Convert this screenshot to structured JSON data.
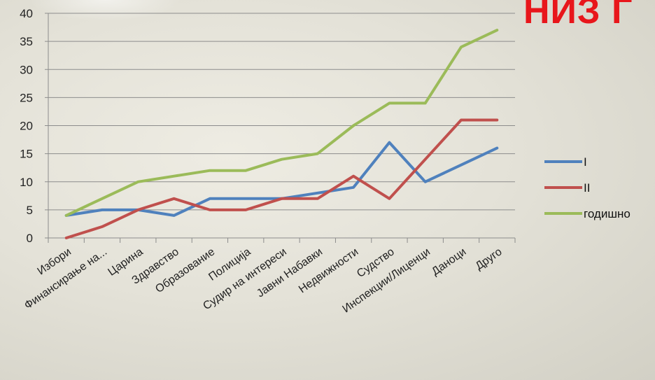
{
  "page": {
    "title_fragment": "НИЗ Г"
  },
  "chart_data": {
    "type": "line",
    "title": "",
    "xlabel": "",
    "ylabel": "",
    "categories": [
      "Избори",
      "Финансирање на...",
      "Царина",
      "Здравство",
      "Образование",
      "Полиција",
      "Судир на интереси",
      "Јавни Набавки",
      "Недвижности",
      "Судство",
      "Инспекции/Лиценци",
      "Даноци",
      "Друго"
    ],
    "series": [
      {
        "name": "I",
        "color": "#4f81bd",
        "values": [
          4,
          5,
          5,
          4,
          7,
          7,
          7,
          8,
          9,
          17,
          10,
          13,
          16
        ]
      },
      {
        "name": "II",
        "color": "#c0504d",
        "values": [
          0,
          2,
          5,
          7,
          5,
          5,
          7,
          7,
          11,
          7,
          14,
          21,
          21
        ]
      },
      {
        "name": "годишно",
        "color": "#9bbb59",
        "values": [
          4,
          7,
          10,
          11,
          12,
          12,
          14,
          15,
          20,
          24,
          24,
          34,
          37
        ]
      }
    ],
    "ylim": [
      0,
      40
    ],
    "yticks": [
      0,
      5,
      10,
      15,
      20,
      25,
      30,
      35,
      40
    ],
    "grid": true,
    "legend_position": "right"
  }
}
